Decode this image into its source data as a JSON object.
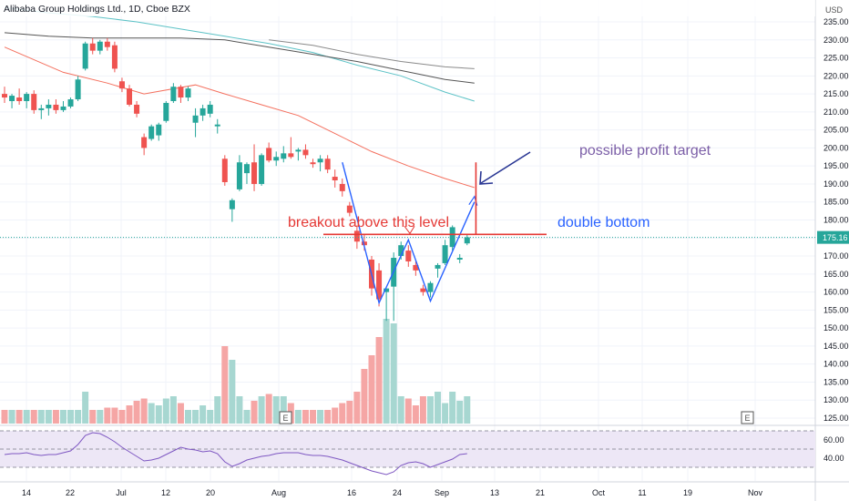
{
  "header": {
    "symbol_title": "Alibaba Group Holdings Ltd., 1D, Cboe BZX",
    "currency": "USD"
  },
  "colors": {
    "up": "#26a69a",
    "down": "#ef5350",
    "up_volume": "#a7d7d1",
    "down_volume": "#f5a6a5",
    "ma_fast": "#f4705e",
    "ma_mid": "#5cc2c6",
    "ma_slow": "#555555",
    "pattern": "#2962ff",
    "breakout": "#e53935",
    "profit_target_text": "#7b5ea7",
    "target_arrow": "#283593",
    "rsi_line": "#7e57c2",
    "rsi_band": "#ede7f6"
  },
  "chart_data": {
    "type": "candlestick",
    "x_ticks": [
      "14",
      "22",
      "Jul",
      "12",
      "20",
      "Aug",
      "16",
      "24",
      "Sep",
      "13",
      "21",
      "Oct",
      "11",
      "19",
      "Nov"
    ],
    "y_ticks": [
      125,
      130,
      135,
      140,
      145,
      150,
      155,
      160,
      165,
      170,
      175,
      180,
      185,
      190,
      195,
      200,
      205,
      210,
      215,
      220,
      225,
      230,
      235
    ],
    "ylim": [
      123,
      240
    ],
    "last_price": "175.16",
    "candles": [
      {
        "o": 215.0,
        "h": 217.0,
        "l": 212.5,
        "c": 214.0
      },
      {
        "o": 213.0,
        "h": 215.0,
        "l": 211.0,
        "c": 214.5
      },
      {
        "o": 214.0,
        "h": 216.5,
        "l": 212.0,
        "c": 213.0
      },
      {
        "o": 213.0,
        "h": 215.5,
        "l": 211.0,
        "c": 215.0
      },
      {
        "o": 215.0,
        "h": 216.0,
        "l": 209.5,
        "c": 210.5
      },
      {
        "o": 210.5,
        "h": 212.0,
        "l": 208.0,
        "c": 211.0
      },
      {
        "o": 211.0,
        "h": 213.5,
        "l": 209.0,
        "c": 212.0
      },
      {
        "o": 212.0,
        "h": 213.5,
        "l": 209.5,
        "c": 210.5
      },
      {
        "o": 210.5,
        "h": 213.0,
        "l": 210.0,
        "c": 211.5
      },
      {
        "o": 211.5,
        "h": 214.0,
        "l": 211.0,
        "c": 213.5
      },
      {
        "o": 213.5,
        "h": 220.0,
        "l": 213.0,
        "c": 219.0
      },
      {
        "o": 222.0,
        "h": 229.5,
        "l": 221.5,
        "c": 229.0
      },
      {
        "o": 229.0,
        "h": 230.5,
        "l": 226.0,
        "c": 227.0
      },
      {
        "o": 227.0,
        "h": 230.0,
        "l": 226.0,
        "c": 229.5
      },
      {
        "o": 229.5,
        "h": 230.5,
        "l": 227.0,
        "c": 228.0
      },
      {
        "o": 228.5,
        "h": 229.5,
        "l": 221.0,
        "c": 222.0
      },
      {
        "o": 218.5,
        "h": 219.5,
        "l": 215.5,
        "c": 216.5
      },
      {
        "o": 216.5,
        "h": 217.5,
        "l": 211.5,
        "c": 212.0
      },
      {
        "o": 212.0,
        "h": 213.0,
        "l": 208.5,
        "c": 209.5
      },
      {
        "o": 203.0,
        "h": 204.0,
        "l": 198.0,
        "c": 200.0
      },
      {
        "o": 202.5,
        "h": 206.5,
        "l": 202.0,
        "c": 206.0
      },
      {
        "o": 203.5,
        "h": 207.0,
        "l": 202.0,
        "c": 206.5
      },
      {
        "o": 207.5,
        "h": 213.0,
        "l": 207.0,
        "c": 212.5
      },
      {
        "o": 213.0,
        "h": 218.0,
        "l": 212.5,
        "c": 217.0
      },
      {
        "o": 217.0,
        "h": 217.5,
        "l": 212.5,
        "c": 214.0
      },
      {
        "o": 214.0,
        "h": 217.0,
        "l": 213.0,
        "c": 216.5
      },
      {
        "o": 207.0,
        "h": 211.0,
        "l": 203.0,
        "c": 209.0
      },
      {
        "o": 209.0,
        "h": 212.0,
        "l": 207.5,
        "c": 211.0
      },
      {
        "o": 209.5,
        "h": 213.0,
        "l": 208.5,
        "c": 212.0
      },
      {
        "o": 206.0,
        "h": 208.0,
        "l": 204.0,
        "c": 206.5
      },
      {
        "o": 197.0,
        "h": 198.0,
        "l": 189.5,
        "c": 190.5
      },
      {
        "o": 183.0,
        "h": 186.0,
        "l": 179.5,
        "c": 185.5
      },
      {
        "o": 188.5,
        "h": 198.0,
        "l": 188.0,
        "c": 196.0
      },
      {
        "o": 193.0,
        "h": 196.0,
        "l": 190.0,
        "c": 195.5
      },
      {
        "o": 196.0,
        "h": 201.0,
        "l": 188.0,
        "c": 190.0
      },
      {
        "o": 190.0,
        "h": 198.5,
        "l": 189.5,
        "c": 198.0
      },
      {
        "o": 200.0,
        "h": 201.5,
        "l": 196.0,
        "c": 196.5
      },
      {
        "o": 196.5,
        "h": 199.0,
        "l": 195.0,
        "c": 197.5
      },
      {
        "o": 197.0,
        "h": 200.5,
        "l": 196.0,
        "c": 198.5
      },
      {
        "o": 198.5,
        "h": 203.0,
        "l": 197.0,
        "c": 197.5
      },
      {
        "o": 199.0,
        "h": 200.0,
        "l": 196.5,
        "c": 199.5
      },
      {
        "o": 199.5,
        "h": 201.0,
        "l": 197.0,
        "c": 198.0
      },
      {
        "o": 196.0,
        "h": 197.0,
        "l": 194.5,
        "c": 195.5
      },
      {
        "o": 196.0,
        "h": 198.0,
        "l": 193.5,
        "c": 197.0
      },
      {
        "o": 197.0,
        "h": 198.0,
        "l": 193.0,
        "c": 194.0
      },
      {
        "o": 192.0,
        "h": 194.0,
        "l": 189.0,
        "c": 191.0
      },
      {
        "o": 190.0,
        "h": 191.5,
        "l": 186.5,
        "c": 188.0
      },
      {
        "o": 184.0,
        "h": 185.0,
        "l": 181.0,
        "c": 182.0
      },
      {
        "o": 177.0,
        "h": 178.5,
        "l": 172.0,
        "c": 174.0
      },
      {
        "o": 174.0,
        "h": 176.0,
        "l": 171.5,
        "c": 173.0
      },
      {
        "o": 169.0,
        "h": 170.0,
        "l": 159.0,
        "c": 161.0
      },
      {
        "o": 166.0,
        "h": 168.0,
        "l": 156.0,
        "c": 158.0
      },
      {
        "o": 160.0,
        "h": 161.0,
        "l": 152.0,
        "c": 161.0
      },
      {
        "o": 161.5,
        "h": 171.0,
        "l": 152.0,
        "c": 169.5
      },
      {
        "o": 170.0,
        "h": 174.0,
        "l": 169.0,
        "c": 173.0
      },
      {
        "o": 171.5,
        "h": 173.0,
        "l": 167.0,
        "c": 168.5
      },
      {
        "o": 167.5,
        "h": 168.5,
        "l": 164.5,
        "c": 166.0
      },
      {
        "o": 161.0,
        "h": 162.0,
        "l": 159.0,
        "c": 160.0
      },
      {
        "o": 160.0,
        "h": 163.0,
        "l": 158.5,
        "c": 162.5
      },
      {
        "o": 166.5,
        "h": 168.0,
        "l": 164.0,
        "c": 167.5
      },
      {
        "o": 168.0,
        "h": 174.5,
        "l": 167.5,
        "c": 173.0
      },
      {
        "o": 172.5,
        "h": 178.5,
        "l": 171.5,
        "c": 178.0
      },
      {
        "o": 169.0,
        "h": 170.5,
        "l": 168.0,
        "c": 169.5
      },
      {
        "o": 173.5,
        "h": 176.0,
        "l": 173.0,
        "c": 175.2
      }
    ],
    "volumes": [
      0.3,
      0.3,
      0.3,
      0.3,
      0.3,
      0.3,
      0.3,
      0.3,
      0.3,
      0.3,
      0.3,
      0.7,
      0.3,
      0.3,
      0.35,
      0.35,
      0.3,
      0.4,
      0.5,
      0.55,
      0.45,
      0.4,
      0.55,
      0.6,
      0.45,
      0.3,
      0.3,
      0.4,
      0.3,
      0.6,
      1.7,
      1.4,
      0.6,
      0.3,
      0.5,
      0.6,
      0.65,
      0.6,
      0.6,
      0.45,
      0.3,
      0.3,
      0.3,
      0.3,
      0.3,
      0.35,
      0.45,
      0.5,
      0.7,
      1.2,
      1.5,
      1.9,
      2.3,
      2.2,
      0.6,
      0.55,
      0.4,
      0.6,
      0.6,
      0.7,
      0.45,
      0.7,
      0.5,
      0.6
    ],
    "ma_fast": [
      [
        0,
        228
      ],
      [
        8,
        221
      ],
      [
        14,
        218
      ],
      [
        19,
        215
      ],
      [
        26,
        217.5
      ],
      [
        30,
        215
      ],
      [
        35,
        212
      ],
      [
        40,
        209
      ],
      [
        45,
        204
      ],
      [
        50,
        199
      ],
      [
        55,
        195
      ],
      [
        60,
        191.5
      ],
      [
        64,
        189
      ]
    ],
    "ma_mid": [
      [
        0,
        239
      ],
      [
        6,
        237.5
      ],
      [
        12,
        236.5
      ],
      [
        18,
        235
      ],
      [
        24,
        233
      ],
      [
        30,
        231
      ],
      [
        36,
        229
      ],
      [
        42,
        226.5
      ],
      [
        48,
        223
      ],
      [
        54,
        220
      ],
      [
        60,
        215.5
      ],
      [
        64,
        213
      ]
    ],
    "ma_slow": [
      [
        0,
        232
      ],
      [
        6,
        231
      ],
      [
        12,
        230.5
      ],
      [
        18,
        230.5
      ],
      [
        24,
        230.5
      ],
      [
        30,
        230
      ],
      [
        36,
        228
      ],
      [
        42,
        226
      ],
      [
        48,
        224
      ],
      [
        54,
        221.5
      ],
      [
        60,
        219
      ],
      [
        64,
        218
      ]
    ],
    "ma_slow2": [
      [
        36,
        230
      ],
      [
        42,
        228.5
      ],
      [
        48,
        226
      ],
      [
        54,
        224
      ],
      [
        60,
        222.5
      ],
      [
        64,
        222
      ]
    ],
    "rsi": {
      "ylim": [
        15,
        75
      ],
      "ticks": [
        40,
        60
      ],
      "band": [
        30,
        70
      ],
      "values": [
        44,
        45,
        45,
        46,
        44,
        43,
        44,
        44,
        46,
        48,
        55,
        65,
        68,
        67,
        63,
        58,
        52,
        47,
        42,
        37,
        38,
        40,
        44,
        48,
        52,
        50,
        49,
        47,
        48,
        45,
        36,
        31,
        34,
        38,
        40,
        42,
        43,
        45,
        46,
        46,
        46,
        44,
        43,
        43,
        42,
        40,
        38,
        35,
        32,
        29,
        26,
        24,
        22,
        25,
        32,
        35,
        36,
        34,
        30,
        33,
        36,
        39,
        44,
        45
      ]
    },
    "annotations": {
      "profit_target": "possible profit target",
      "breakout": "breakout above this level",
      "pattern": "double bottom",
      "breakout_level": 176,
      "pattern_points": [
        [
          46,
          196
        ],
        [
          51,
          157
        ],
        [
          55,
          174.5
        ],
        [
          58,
          157.5
        ],
        [
          64,
          185
        ],
        [
          65,
          188.5
        ]
      ],
      "target_line": {
        "x": 64.2,
        "from": 176,
        "to": 196
      }
    }
  }
}
